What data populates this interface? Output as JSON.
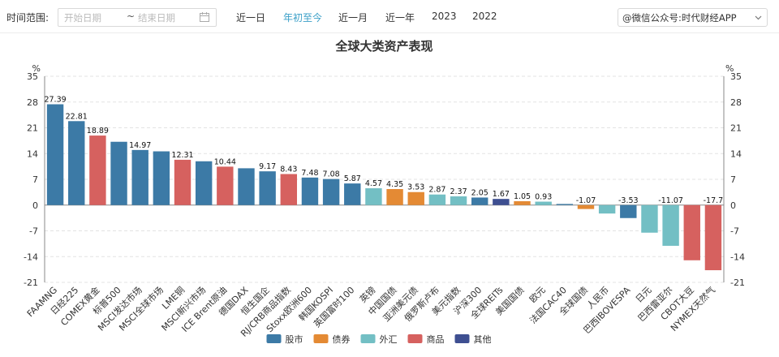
{
  "toolbar": {
    "label": "时间范围:",
    "start_placeholder": "开始日期",
    "separator": "~",
    "end_placeholder": "结束日期",
    "ranges": [
      "近一日",
      "年初至今",
      "近一月",
      "近一年",
      "2023",
      "2022"
    ],
    "active_range": "年初至今",
    "right_select_text": "@微信公众号:时代财经APP"
  },
  "chart_data": {
    "type": "bar",
    "title": "全球大类资产表现",
    "y_unit_left": "%",
    "y_unit_right": "%",
    "ylim": [
      -21,
      35
    ],
    "yticks": [
      35,
      28,
      21,
      14,
      7,
      0,
      -7,
      -14,
      -21
    ],
    "grid": true,
    "legend_position": "bottom",
    "groups": [
      {
        "name": "股市",
        "color": "#3c7aa6"
      },
      {
        "name": "债券",
        "color": "#e48a34"
      },
      {
        "name": "外汇",
        "color": "#73bfc4"
      },
      {
        "name": "商品",
        "color": "#d6615f"
      },
      {
        "name": "其他",
        "color": "#3e4f91"
      }
    ],
    "bars": [
      {
        "category": "FAAMNG",
        "value": 27.39,
        "group": "股市",
        "label": "27.39"
      },
      {
        "category": "日经225",
        "value": 22.81,
        "group": "股市",
        "label": "22.81"
      },
      {
        "category": "COMEX黄金",
        "value": 18.89,
        "group": "商品",
        "label": "18.89"
      },
      {
        "category": "标普500",
        "value": 17.2,
        "group": "股市",
        "label": ""
      },
      {
        "category": "MSCI发达市场",
        "value": 14.97,
        "group": "股市",
        "label": "14.97"
      },
      {
        "category": "MSCI全球市场",
        "value": 14.6,
        "group": "股市",
        "label": ""
      },
      {
        "category": "LME铜",
        "value": 12.31,
        "group": "商品",
        "label": "12.31"
      },
      {
        "category": "MSCI新兴市场",
        "value": 11.9,
        "group": "股市",
        "label": ""
      },
      {
        "category": "ICE Brent原油",
        "value": 10.44,
        "group": "商品",
        "label": "10.44"
      },
      {
        "category": "德国DAX",
        "value": 10.0,
        "group": "股市",
        "label": ""
      },
      {
        "category": "恒生国企",
        "value": 9.17,
        "group": "股市",
        "label": "9.17"
      },
      {
        "category": "RJ/CRB商品指数",
        "value": 8.43,
        "group": "商品",
        "label": "8.43"
      },
      {
        "category": "Stoxx欧洲600",
        "value": 7.48,
        "group": "股市",
        "label": "7.48"
      },
      {
        "category": "韩国KOSPI",
        "value": 7.08,
        "group": "股市",
        "label": "7.08"
      },
      {
        "category": "英国富时100",
        "value": 5.87,
        "group": "股市",
        "label": "5.87"
      },
      {
        "category": "英镑",
        "value": 4.57,
        "group": "外汇",
        "label": "4.57"
      },
      {
        "category": "中国国债",
        "value": 4.35,
        "group": "债券",
        "label": "4.35"
      },
      {
        "category": "亚洲美元债",
        "value": 3.53,
        "group": "债券",
        "label": "3.53"
      },
      {
        "category": "俄罗斯卢布",
        "value": 2.87,
        "group": "外汇",
        "label": "2.87"
      },
      {
        "category": "美元指数",
        "value": 2.37,
        "group": "外汇",
        "label": "2.37"
      },
      {
        "category": "沪深300",
        "value": 2.05,
        "group": "股市",
        "label": "2.05"
      },
      {
        "category": "全球REITs",
        "value": 1.67,
        "group": "其他",
        "label": "1.67"
      },
      {
        "category": "美国国债",
        "value": 1.05,
        "group": "债券",
        "label": "1.05"
      },
      {
        "category": "欧元",
        "value": 0.93,
        "group": "外汇",
        "label": "0.93"
      },
      {
        "category": "法国CAC40",
        "value": 0.3,
        "group": "股市",
        "label": ""
      },
      {
        "category": "全球国债",
        "value": -1.07,
        "group": "债券",
        "label": "-1.07"
      },
      {
        "category": "人民币",
        "value": -2.3,
        "group": "外汇",
        "label": ""
      },
      {
        "category": "巴西IBOVESPA",
        "value": -3.53,
        "group": "股市",
        "label": "-3.53"
      },
      {
        "category": "日元",
        "value": -7.5,
        "group": "外汇",
        "label": ""
      },
      {
        "category": "巴西雷亚尔",
        "value": -11.07,
        "group": "外汇",
        "label": "-11.07"
      },
      {
        "category": "CBOT大豆",
        "value": -15.0,
        "group": "商品",
        "label": ""
      },
      {
        "category": "NYMEX天然气",
        "value": -17.7,
        "group": "商品",
        "label": "-17.7"
      }
    ]
  }
}
